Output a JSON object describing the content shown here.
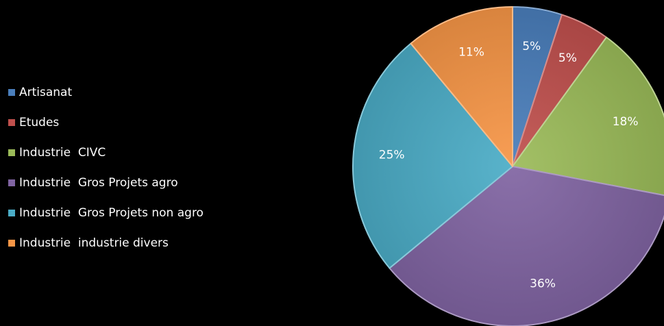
{
  "chart_data": {
    "type": "pie",
    "categories": [
      "Artisanat",
      "Etudes",
      "Industrie  CIVC",
      "Industrie  Gros Projets agro",
      "Industrie  Gros Projets non agro",
      "Industrie  industrie divers"
    ],
    "values": [
      5,
      5,
      18,
      36,
      25,
      11
    ],
    "labels": [
      "5%",
      "5%",
      "18%",
      "36%",
      "25%",
      "11%"
    ],
    "colors": [
      "#4a7ebb",
      "#c0504d",
      "#9bbb59",
      "#8064a2",
      "#4bacc6",
      "#f79646"
    ],
    "start_angle": "12 o'clock",
    "direction": "clockwise",
    "legend_position": "left"
  }
}
